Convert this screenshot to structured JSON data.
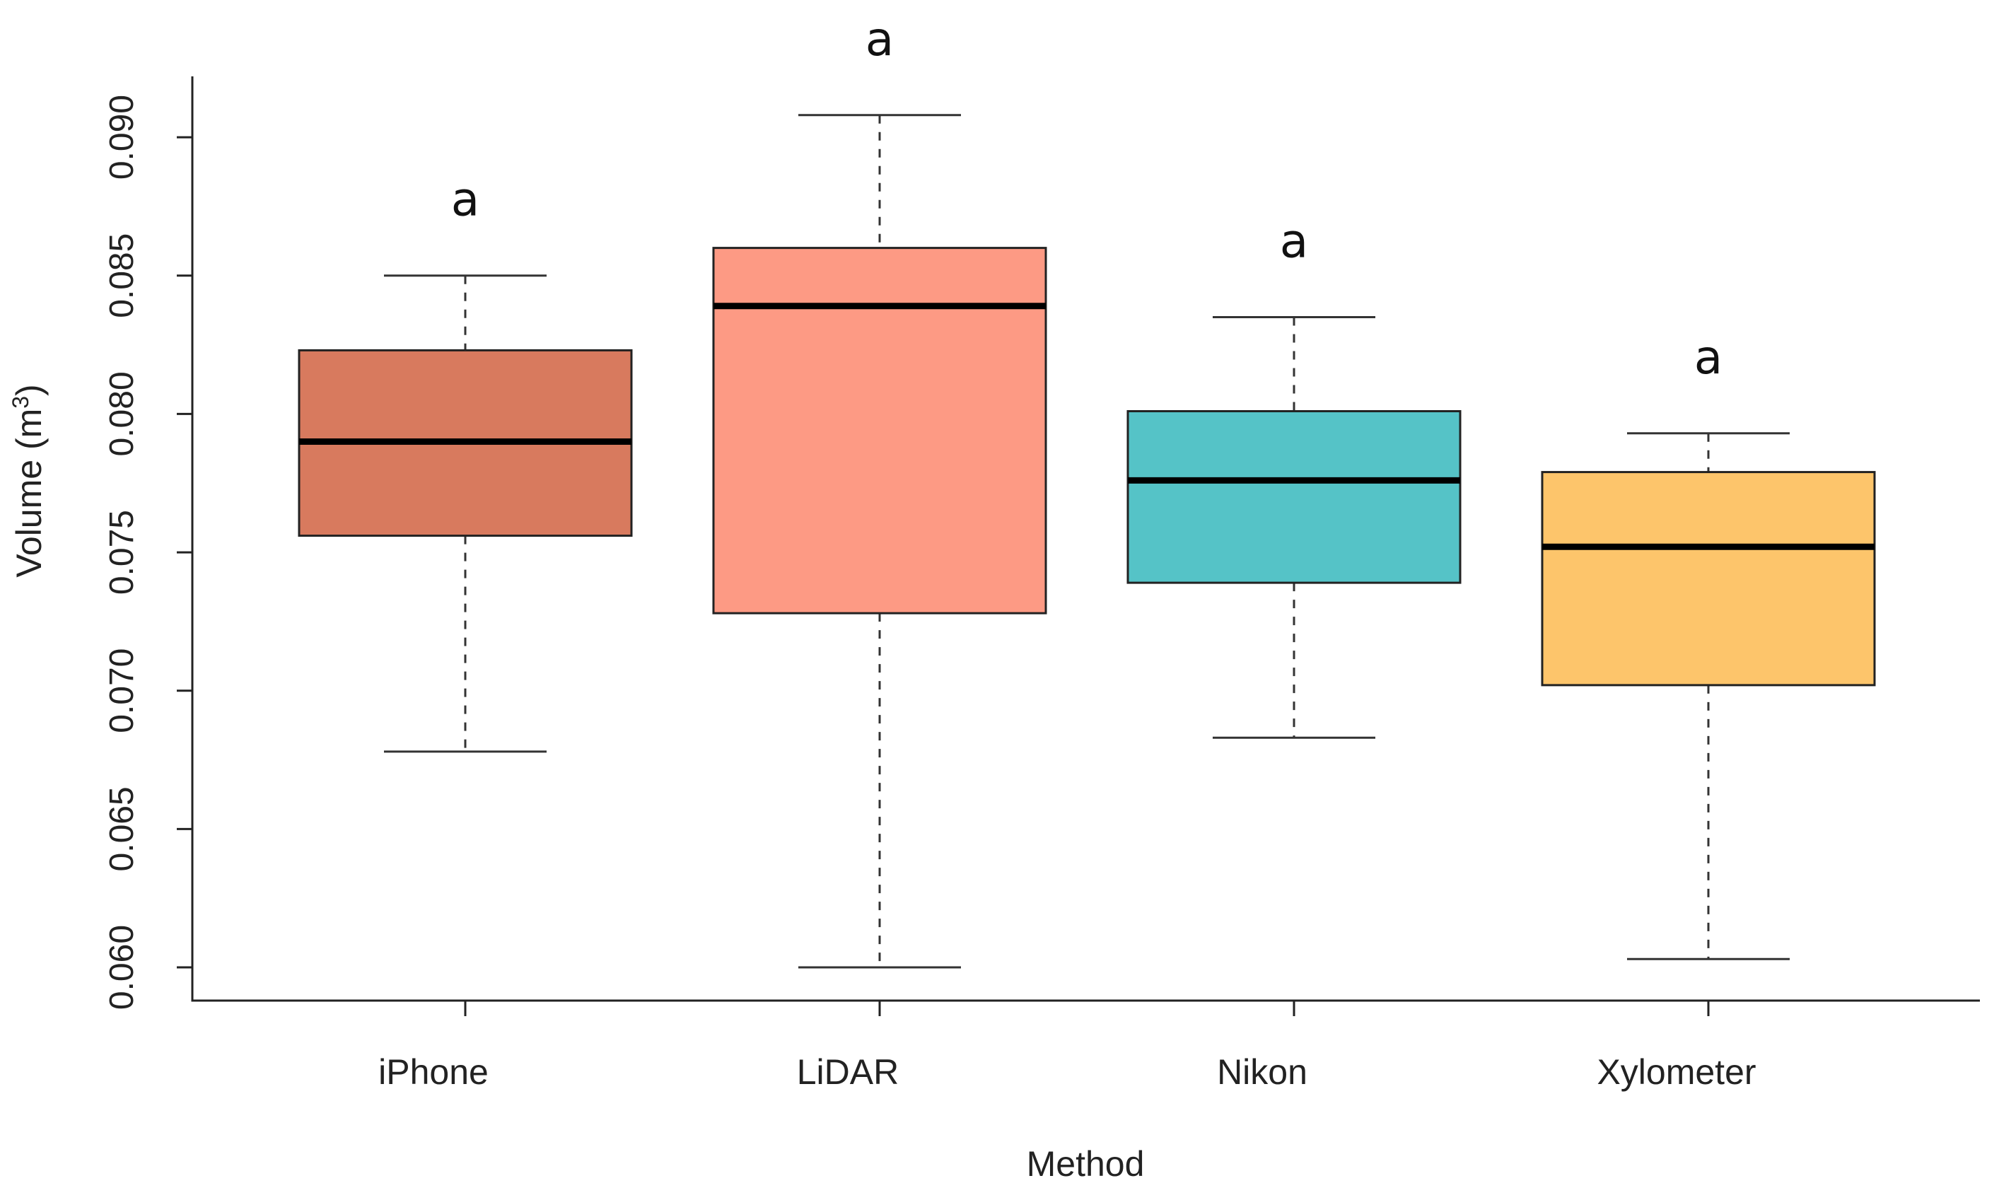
{
  "chart_data": {
    "type": "box",
    "xlabel": "Method",
    "ylabel": "Volume (m",
    "ylabel_sup": "3",
    "ylabel_close": ")",
    "ylim": [
      0.0588,
      0.0922
    ],
    "yticks": [
      0.06,
      0.065,
      0.07,
      0.075,
      0.08,
      0.085,
      0.09
    ],
    "ytick_labels": [
      "0.060",
      "0.065",
      "0.070",
      "0.075",
      "0.080",
      "0.085",
      "0.090"
    ],
    "grid": false,
    "categories": [
      "iPhone",
      "LiDAR",
      "Nikon",
      "Xylometer"
    ],
    "boxes": [
      {
        "category": "iPhone",
        "whisker_low": 0.0678,
        "q1": 0.0756,
        "median": 0.079,
        "q3": 0.0823,
        "whisker_high": 0.085,
        "color": "#d87a5e",
        "letter": "a"
      },
      {
        "category": "LiDAR",
        "whisker_low": 0.06,
        "q1": 0.0728,
        "median": 0.0839,
        "q3": 0.086,
        "whisker_high": 0.0908,
        "color": "#fd9a84",
        "letter": "a"
      },
      {
        "category": "Nikon",
        "whisker_low": 0.0683,
        "q1": 0.0739,
        "median": 0.0776,
        "q3": 0.0801,
        "whisker_high": 0.0835,
        "color": "#55c3c7",
        "letter": "a"
      },
      {
        "category": "Xylometer",
        "whisker_low": 0.0603,
        "q1": 0.0702,
        "median": 0.0752,
        "q3": 0.0779,
        "whisker_high": 0.0793,
        "color": "#fdc56b",
        "letter": "a"
      }
    ]
  }
}
